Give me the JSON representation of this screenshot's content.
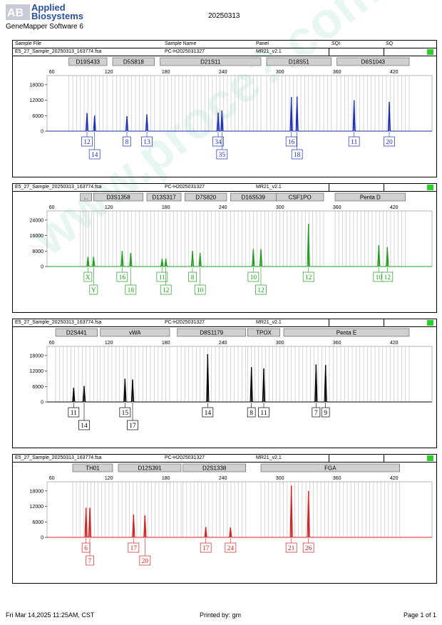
{
  "header": {
    "brand_line1": "Applied",
    "brand_line2": "Biosystems",
    "software": "GeneMapper Software 6",
    "date": "20250313"
  },
  "columns": {
    "sample_file": "Sample File",
    "sample_name": "Sample Name",
    "panel": "Panel",
    "sqi": "SQI",
    "sq": "SQ"
  },
  "watermark": "www.proce?.com.cn",
  "footer": {
    "timestamp": "Fri Mar 14,2025 11:25AM, CST",
    "printed_by": "Printed by: gm",
    "page": "Page 1 of 1"
  },
  "colors": {
    "blue": "#1a2fb5",
    "green": "#1f9e1f",
    "black": "#000000",
    "red": "#d42020",
    "quality": "#2bd12b",
    "bin": "#cccccc"
  },
  "chart_data": [
    {
      "type": "line",
      "file": "E5_27_Sample_20250313_163774.fsa",
      "sample_name": "PC-H2025031327",
      "panel": "MR21_v2.1",
      "dye": "blue",
      "x_ticks": [
        60,
        120,
        180,
        240,
        300,
        360,
        420
      ],
      "y_ticks": [
        0,
        6000,
        12000,
        18000
      ],
      "ylim": [
        0,
        21000
      ],
      "xlim": [
        55,
        460
      ],
      "loci": [
        {
          "name": "D19S433",
          "start": 78,
          "end": 118
        },
        {
          "name": "D5S818",
          "start": 124,
          "end": 168
        },
        {
          "name": "D21S11",
          "start": 174,
          "end": 280
        },
        {
          "name": "D18S51",
          "start": 286,
          "end": 354
        },
        {
          "name": "D6S1043",
          "start": 360,
          "end": 436
        }
      ],
      "peaks": [
        {
          "x": 97,
          "h": 7000,
          "allele": "12"
        },
        {
          "x": 105,
          "h": 6000,
          "allele": "14"
        },
        {
          "x": 139,
          "h": 5800,
          "allele": "8"
        },
        {
          "x": 160,
          "h": 6500,
          "allele": "13"
        },
        {
          "x": 235,
          "h": 7200,
          "allele": "34"
        },
        {
          "x": 239,
          "h": 8000,
          "allele": "35"
        },
        {
          "x": 312,
          "h": 13200,
          "allele": "16"
        },
        {
          "x": 318,
          "h": 13400,
          "allele": "18"
        },
        {
          "x": 378,
          "h": 12000,
          "allele": "11"
        },
        {
          "x": 415,
          "h": 11300,
          "allele": "20"
        }
      ]
    },
    {
      "type": "line",
      "file": "E5_27_Sample_20250313_163774.fsa",
      "sample_name": "PC-H2025031327",
      "panel": "MR21_v2.1",
      "dye": "green",
      "x_ticks": [
        60,
        120,
        180,
        240,
        300,
        360,
        420
      ],
      "y_ticks": [
        0,
        8000,
        16000,
        24000
      ],
      "ylim": [
        0,
        28000
      ],
      "xlim": [
        55,
        460
      ],
      "loci": [
        {
          "name": "...",
          "start": 90,
          "end": 102
        },
        {
          "name": "D3S1358",
          "start": 104,
          "end": 156
        },
        {
          "name": "D13S317",
          "start": 160,
          "end": 196
        },
        {
          "name": "D7S820",
          "start": 200,
          "end": 244
        },
        {
          "name": "D16S539",
          "start": 248,
          "end": 296
        },
        {
          "name": "CSF1PO",
          "start": 296,
          "end": 346
        },
        {
          "name": "Penta D",
          "start": 358,
          "end": 432
        }
      ],
      "peaks": [
        {
          "x": 98,
          "h": 5000,
          "allele": "X"
        },
        {
          "x": 104,
          "h": 5000,
          "allele": "Y"
        },
        {
          "x": 134,
          "h": 8000,
          "allele": "16"
        },
        {
          "x": 143,
          "h": 7000,
          "allele": "18"
        },
        {
          "x": 176,
          "h": 4000,
          "allele": "11"
        },
        {
          "x": 180,
          "h": 4000,
          "allele": "12"
        },
        {
          "x": 208,
          "h": 8000,
          "allele": "8"
        },
        {
          "x": 216,
          "h": 7000,
          "allele": "10"
        },
        {
          "x": 272,
          "h": 9000,
          "allele": "10"
        },
        {
          "x": 280,
          "h": 9000,
          "allele": "12"
        },
        {
          "x": 330,
          "h": 22000,
          "allele": "12"
        },
        {
          "x": 404,
          "h": 11000,
          "allele": "10"
        },
        {
          "x": 413,
          "h": 10000,
          "allele": "12"
        }
      ]
    },
    {
      "type": "line",
      "file": "E5_27_Sample_20250313_163774.fsa",
      "sample_name": "PC-H2025031327",
      "panel": "MR21_v2.1",
      "dye": "black",
      "x_ticks": [
        60,
        120,
        180,
        240,
        300,
        360,
        420
      ],
      "y_ticks": [
        0,
        6000,
        12000,
        18000
      ],
      "ylim": [
        0,
        21000
      ],
      "xlim": [
        55,
        460
      ],
      "loci": [
        {
          "name": "D2S441",
          "start": 64,
          "end": 108
        },
        {
          "name": "vWA",
          "start": 111,
          "end": 184
        },
        {
          "name": "D8S1179",
          "start": 192,
          "end": 264
        },
        {
          "name": "TPOX",
          "start": 266,
          "end": 300
        },
        {
          "name": "Penta E",
          "start": 304,
          "end": 436
        }
      ],
      "peaks": [
        {
          "x": 83,
          "h": 5500,
          "allele": "11"
        },
        {
          "x": 94,
          "h": 6200,
          "allele": "14"
        },
        {
          "x": 137,
          "h": 9000,
          "allele": "15"
        },
        {
          "x": 145,
          "h": 8700,
          "allele": "17"
        },
        {
          "x": 224,
          "h": 18500,
          "allele": "14"
        },
        {
          "x": 270,
          "h": 13500,
          "allele": "8"
        },
        {
          "x": 283,
          "h": 13000,
          "allele": "11"
        },
        {
          "x": 338,
          "h": 14500,
          "allele": "7"
        },
        {
          "x": 348,
          "h": 14300,
          "allele": "9"
        }
      ]
    },
    {
      "type": "line",
      "file": "E5_27_Sample_20250313_163774.fsa",
      "sample_name": "PC-H2025031327",
      "panel": "MR21_v2.1",
      "dye": "red",
      "x_ticks": [
        60,
        120,
        180,
        240,
        300,
        360,
        420
      ],
      "y_ticks": [
        0,
        6000,
        12000,
        18000
      ],
      "ylim": [
        0,
        21000
      ],
      "xlim": [
        55,
        460
      ],
      "loci": [
        {
          "name": "TH01",
          "start": 82,
          "end": 124
        },
        {
          "name": "D12S391",
          "start": 130,
          "end": 196
        },
        {
          "name": "D2S1338",
          "start": 198,
          "end": 264
        },
        {
          "name": "FGA",
          "start": 280,
          "end": 426
        }
      ],
      "peaks": [
        {
          "x": 96,
          "h": 11500,
          "allele": "6"
        },
        {
          "x": 100,
          "h": 11500,
          "allele": "7"
        },
        {
          "x": 146,
          "h": 8800,
          "allele": "17"
        },
        {
          "x": 158,
          "h": 8500,
          "allele": "20"
        },
        {
          "x": 222,
          "h": 4000,
          "allele": "17"
        },
        {
          "x": 248,
          "h": 3800,
          "allele": "24"
        },
        {
          "x": 312,
          "h": 20000,
          "allele": "21"
        },
        {
          "x": 330,
          "h": 18000,
          "allele": "26"
        }
      ]
    }
  ]
}
